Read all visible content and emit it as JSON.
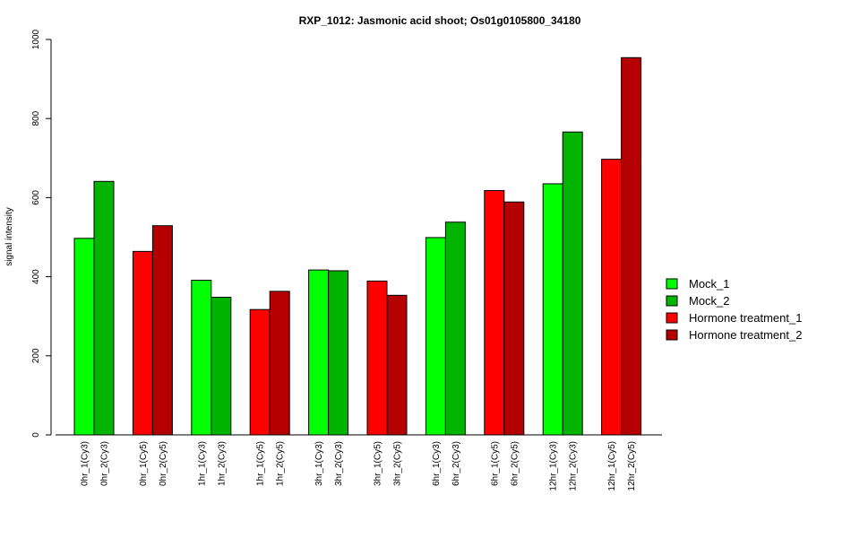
{
  "chart_data": {
    "type": "bar",
    "title": "RXP_1012: Jasmonic acid shoot; Os01g0105800_34180",
    "ylabel": "signal intensity",
    "xlabel": "",
    "ylim": [
      0,
      1000
    ],
    "yticks": [
      "0",
      "200",
      "400",
      "600",
      "800",
      "1000"
    ],
    "grid": false,
    "legend_position": "right",
    "series": [
      {
        "name": "Mock_1",
        "color": "#00ff00"
      },
      {
        "name": "Mock_2",
        "color": "#00b400"
      },
      {
        "name": "Hormone treatment_1",
        "color": "#ff0000"
      },
      {
        "name": "Hormone treatment_2",
        "color": "#b40000"
      }
    ],
    "groups": [
      {
        "bars": [
          {
            "label": "0hr_1(Cy3)",
            "value": 497,
            "series": 0
          },
          {
            "label": "0hr_2(Cy3)",
            "value": 641,
            "series": 1
          }
        ]
      },
      {
        "bars": [
          {
            "label": "0hr_1(Cy5)",
            "value": 464,
            "series": 2
          },
          {
            "label": "0hr_2(Cy5)",
            "value": 529,
            "series": 3
          }
        ]
      },
      {
        "bars": [
          {
            "label": "1hr_1(Cy3)",
            "value": 391,
            "series": 0
          },
          {
            "label": "1hr_2(Cy3)",
            "value": 348,
            "series": 1
          }
        ]
      },
      {
        "bars": [
          {
            "label": "1hr_1(Cy5)",
            "value": 317,
            "series": 2
          },
          {
            "label": "1hr_2(Cy5)",
            "value": 363,
            "series": 3
          }
        ]
      },
      {
        "bars": [
          {
            "label": "3hr_1(Cy3)",
            "value": 417,
            "series": 0
          },
          {
            "label": "3hr_2(Cy3)",
            "value": 415,
            "series": 1
          }
        ]
      },
      {
        "bars": [
          {
            "label": "3hr_1(Cy5)",
            "value": 389,
            "series": 2
          },
          {
            "label": "3hr_2(Cy5)",
            "value": 353,
            "series": 3
          }
        ]
      },
      {
        "bars": [
          {
            "label": "6hr_1(Cy3)",
            "value": 499,
            "series": 0
          },
          {
            "label": "6hr_2(Cy3)",
            "value": 538,
            "series": 1
          }
        ]
      },
      {
        "bars": [
          {
            "label": "6hr_1(Cy5)",
            "value": 618,
            "series": 2
          },
          {
            "label": "6hr_2(Cy5)",
            "value": 589,
            "series": 3
          }
        ]
      },
      {
        "bars": [
          {
            "label": "12hr_1(Cy3)",
            "value": 635,
            "series": 0
          },
          {
            "label": "12hr_2(Cy3)",
            "value": 766,
            "series": 1
          }
        ]
      },
      {
        "bars": [
          {
            "label": "12hr_1(Cy5)",
            "value": 697,
            "series": 2
          },
          {
            "label": "12hr_2(Cy5)",
            "value": 954,
            "series": 3
          }
        ]
      }
    ]
  }
}
